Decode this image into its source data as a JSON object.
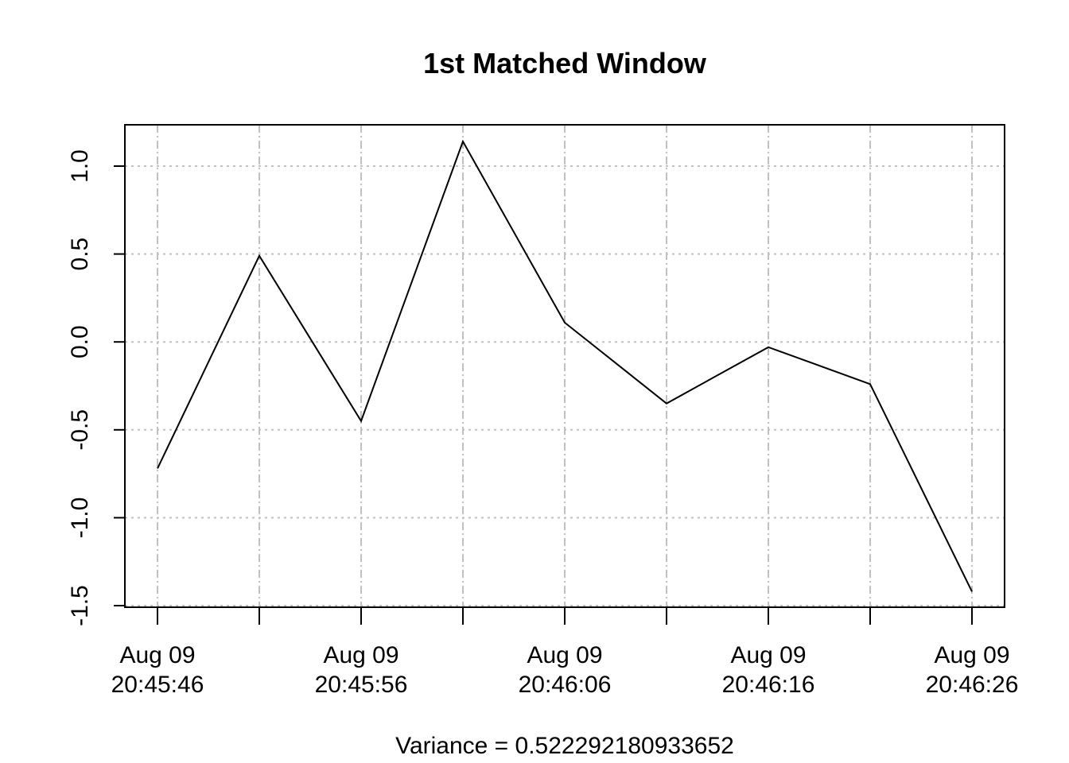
{
  "chart_data": {
    "type": "line",
    "title": "1st Matched Window",
    "xlabel": "Variance = 0.522292180933652",
    "ylabel": "",
    "x": [
      "2019-08-09 20:45:46",
      "2019-08-09 20:45:51",
      "2019-08-09 20:45:56",
      "2019-08-09 20:46:01",
      "2019-08-09 20:46:06",
      "2019-08-09 20:46:11",
      "2019-08-09 20:46:16",
      "2019-08-09 20:46:21",
      "2019-08-09 20:46:26"
    ],
    "series": [
      {
        "values": [
          -0.72,
          0.49,
          -0.45,
          1.14,
          0.11,
          -0.35,
          -0.03,
          -0.24,
          -1.42
        ]
      }
    ],
    "ylim": [
      -1.5,
      1.25
    ],
    "yticks": [
      "-1.5",
      "-1.0",
      "-0.5",
      "0.0",
      "0.5",
      "1.0"
    ],
    "xtick_labels": [
      [
        "Aug 09",
        "20:45:46"
      ],
      [
        "Aug 09",
        "20:45:56"
      ],
      [
        "Aug 09",
        "20:46:06"
      ],
      [
        "Aug 09",
        "20:46:16"
      ],
      [
        "Aug 09",
        "20:46:26"
      ]
    ],
    "grid": true,
    "colors": {
      "line": "#000000",
      "grid": "#c0c0c0",
      "frame": "#000000"
    }
  }
}
